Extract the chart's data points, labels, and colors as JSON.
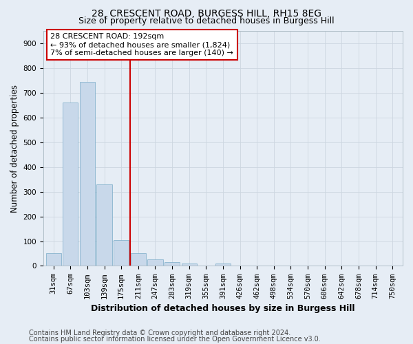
{
  "title_line1": "28, CRESCENT ROAD, BURGESS HILL, RH15 8EG",
  "title_line2": "Size of property relative to detached houses in Burgess Hill",
  "xlabel": "Distribution of detached houses by size in Burgess Hill",
  "ylabel": "Number of detached properties",
  "bin_labels": [
    "31sqm",
    "67sqm",
    "103sqm",
    "139sqm",
    "175sqm",
    "211sqm",
    "247sqm",
    "283sqm",
    "319sqm",
    "355sqm",
    "391sqm",
    "426sqm",
    "462sqm",
    "498sqm",
    "534sqm",
    "570sqm",
    "606sqm",
    "642sqm",
    "678sqm",
    "714sqm",
    "750sqm"
  ],
  "bar_heights": [
    50,
    660,
    745,
    330,
    105,
    50,
    25,
    15,
    10,
    0,
    10,
    0,
    0,
    0,
    0,
    0,
    0,
    0,
    0,
    0,
    0
  ],
  "bar_color": "#c8d8ea",
  "bar_edge_color": "#7aaac8",
  "grid_color": "#ccd6e0",
  "background_color": "#e6edf5",
  "vline_color": "#cc0000",
  "annotation_text": "28 CRESCENT ROAD: 192sqm\n← 93% of detached houses are smaller (1,824)\n7% of semi-detached houses are larger (140) →",
  "annotation_box_color": "#ffffff",
  "annotation_box_edge": "#cc0000",
  "ylim": [
    0,
    950
  ],
  "yticks": [
    0,
    100,
    200,
    300,
    400,
    500,
    600,
    700,
    800,
    900
  ],
  "footer_line1": "Contains HM Land Registry data © Crown copyright and database right 2024.",
  "footer_line2": "Contains public sector information licensed under the Open Government Licence v3.0.",
  "title_fontsize": 10,
  "subtitle_fontsize": 9,
  "axis_label_fontsize": 8.5,
  "tick_fontsize": 7.5,
  "annotation_fontsize": 8,
  "footer_fontsize": 7
}
